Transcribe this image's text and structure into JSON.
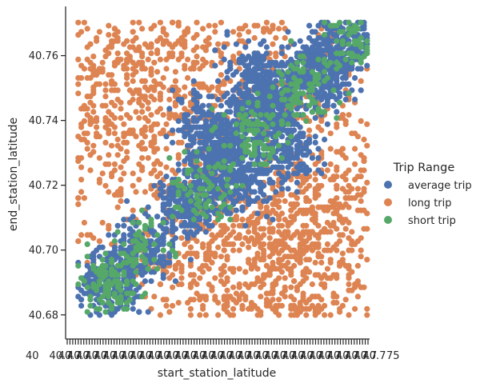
{
  "chart_data": {
    "type": "scatter",
    "title": "",
    "xlabel": "start_station_latitude",
    "ylabel": "end_station_latitude",
    "ylim": [
      40.676,
      40.771
    ],
    "xlim": [
      40.676,
      40.771
    ],
    "y_ticks": [
      40.68,
      40.7,
      40.72,
      40.74,
      40.76
    ],
    "y_tick_labels": [
      "40.68",
      "40.70",
      "40.72",
      "40.74",
      "40.76"
    ],
    "x_tick_labels_left": "40",
    "x_tick_labels_right": "75",
    "x_tick_count": 110,
    "grid": false,
    "legend": {
      "title": "Trip Range",
      "placement": "right",
      "entries": [
        "average trip",
        "long trip",
        "short trip"
      ]
    },
    "series": [
      {
        "name": "average trip",
        "color": "#4C72B0",
        "density": [
          [
            40.69,
            40.69,
            260
          ],
          [
            40.7,
            40.7,
            160
          ],
          [
            40.715,
            40.715,
            260
          ],
          [
            40.725,
            40.73,
            320
          ],
          [
            40.74,
            40.745,
            380
          ],
          [
            40.755,
            40.755,
            380
          ],
          [
            40.765,
            40.765,
            240
          ],
          [
            40.73,
            40.72,
            160
          ],
          [
            40.745,
            40.73,
            160
          ],
          [
            40.72,
            40.74,
            140
          ],
          [
            40.735,
            40.755,
            140
          ]
        ]
      },
      {
        "name": "long trip",
        "color": "#DD8452",
        "density": [
          [
            40.68,
            40.76,
            200
          ],
          [
            40.69,
            40.74,
            180
          ],
          [
            40.7,
            40.75,
            200
          ],
          [
            40.72,
            40.765,
            260
          ],
          [
            40.74,
            40.765,
            200
          ],
          [
            40.75,
            40.7,
            240
          ],
          [
            40.765,
            40.7,
            220
          ],
          [
            40.76,
            40.72,
            200
          ],
          [
            40.74,
            40.69,
            220
          ],
          [
            40.72,
            40.685,
            200
          ],
          [
            40.73,
            40.7,
            200
          ],
          [
            40.7,
            40.72,
            180
          ],
          [
            40.755,
            40.735,
            120
          ]
        ]
      },
      {
        "name": "short trip",
        "color": "#55A868",
        "density": [
          [
            40.69,
            40.69,
            110
          ],
          [
            40.7,
            40.7,
            60
          ],
          [
            40.72,
            40.72,
            80
          ],
          [
            40.735,
            40.735,
            90
          ],
          [
            40.75,
            40.75,
            90
          ],
          [
            40.765,
            40.765,
            70
          ]
        ]
      }
    ]
  }
}
